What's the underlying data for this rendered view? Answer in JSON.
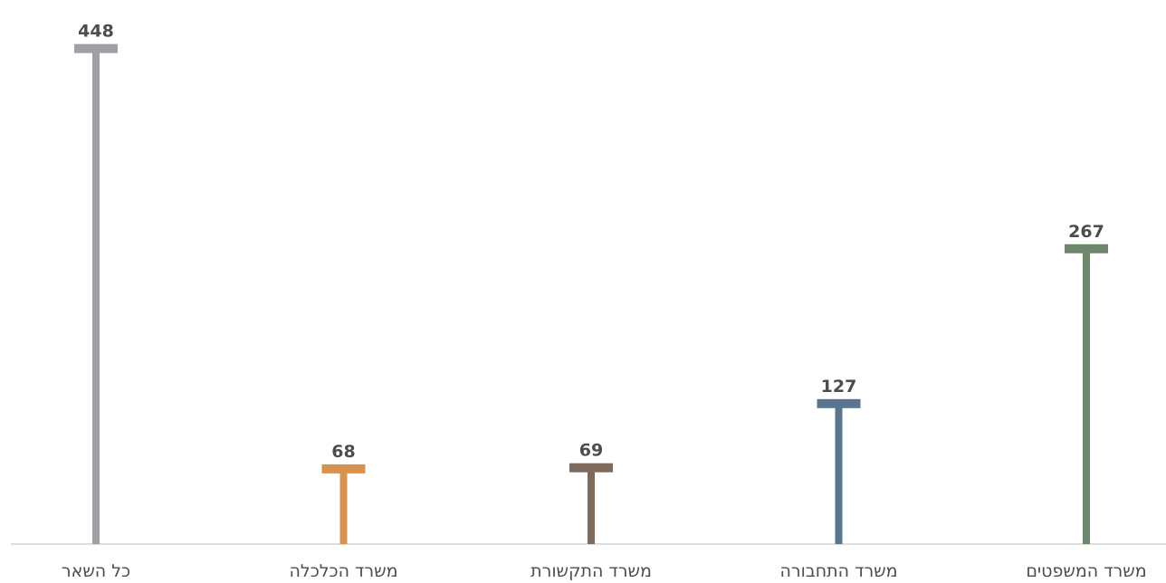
{
  "chart_data": {
    "type": "bar",
    "categories": [
      "כל השאר",
      "משרד הכלכלה",
      "משרד התקשורת",
      "משרד התחבורה",
      "משרד המשפטים"
    ],
    "values": [
      448,
      68,
      69,
      127,
      267
    ],
    "colors": [
      "#a0a0a4",
      "#d8924f",
      "#7f6a5c",
      "#5a7590",
      "#6e876c"
    ],
    "ylim": [
      0,
      460
    ],
    "data_labels": true,
    "grid": false,
    "legend": "none",
    "title": "",
    "xlabel": "",
    "ylabel": ""
  }
}
